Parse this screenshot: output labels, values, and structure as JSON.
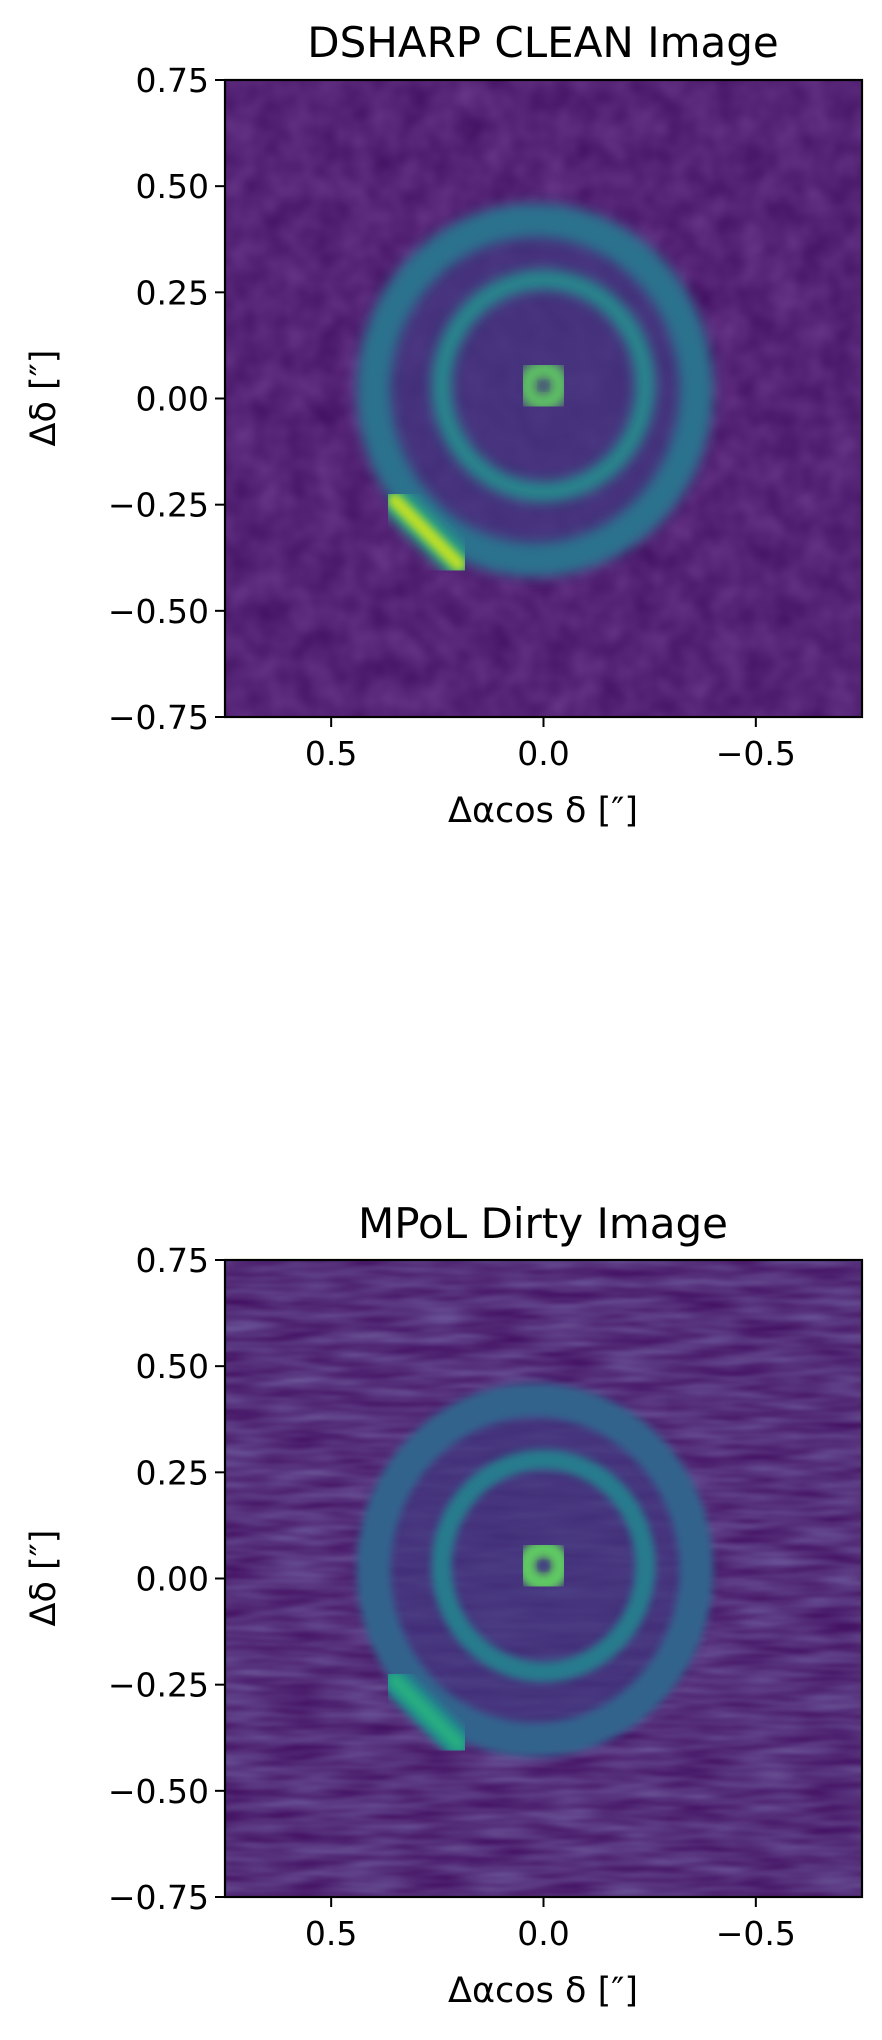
{
  "chart_data": [
    {
      "type": "heatmap",
      "title": "DSHARP CLEAN Image",
      "xlabel": "Δαcos δ [″]",
      "ylabel": "Δδ [″]",
      "xlim": [
        0.75,
        -0.75
      ],
      "ylim": [
        -0.75,
        0.75
      ],
      "xticks": [
        "0.5",
        "0.0",
        "−0.5"
      ],
      "yticks": [
        "0.75",
        "0.50",
        "0.25",
        "0.00",
        "−0.25",
        "−0.50",
        "−0.75"
      ],
      "xtick_values": [
        0.5,
        0.0,
        -0.5
      ],
      "ytick_values": [
        0.75,
        0.5,
        0.25,
        0.0,
        -0.25,
        -0.5,
        -0.75
      ],
      "colormap": "viridis",
      "features": {
        "rings": [
          {
            "type": "inner_core",
            "center": [
              0.0,
              0.03
            ],
            "radius": 0.04,
            "brightness": 0.85
          },
          {
            "type": "middle_ring",
            "center": [
              0.0,
              0.03
            ],
            "rx": 0.24,
            "ry": 0.25,
            "brightness": 0.55
          },
          {
            "type": "outer_ring",
            "center": [
              0.02,
              0.02
            ],
            "rx": 0.38,
            "ry": 0.4,
            "brightness": 0.45
          }
        ],
        "arc": {
          "x_range": [
            0.35,
            0.2
          ],
          "y_range": [
            -0.24,
            -0.39
          ],
          "brightness": 0.95
        }
      },
      "noise": "smooth"
    },
    {
      "type": "heatmap",
      "title": "MPoL Dirty Image",
      "xlabel": "Δαcos δ [″]",
      "ylabel": "Δδ [″]",
      "xlim": [
        0.75,
        -0.75
      ],
      "ylim": [
        -0.75,
        0.75
      ],
      "xticks": [
        "0.5",
        "0.0",
        "−0.5"
      ],
      "yticks": [
        "0.75",
        "0.50",
        "0.25",
        "0.00",
        "−0.25",
        "−0.50",
        "−0.75"
      ],
      "xtick_values": [
        0.5,
        0.0,
        -0.5
      ],
      "ytick_values": [
        0.75,
        0.5,
        0.25,
        0.0,
        -0.25,
        -0.5,
        -0.75
      ],
      "colormap": "viridis",
      "features": {
        "rings": [
          {
            "type": "inner_core",
            "center": [
              0.0,
              0.03
            ],
            "radius": 0.04,
            "brightness": 0.85
          },
          {
            "type": "middle_ring",
            "center": [
              0.0,
              0.03
            ],
            "rx": 0.24,
            "ry": 0.25,
            "brightness": 0.5
          },
          {
            "type": "outer_ring",
            "center": [
              0.02,
              0.02
            ],
            "rx": 0.38,
            "ry": 0.4,
            "brightness": 0.38
          }
        ],
        "arc": {
          "x_range": [
            0.35,
            0.2
          ],
          "y_range": [
            -0.24,
            -0.39
          ],
          "brightness": 0.75
        }
      },
      "noise": "striped"
    }
  ]
}
